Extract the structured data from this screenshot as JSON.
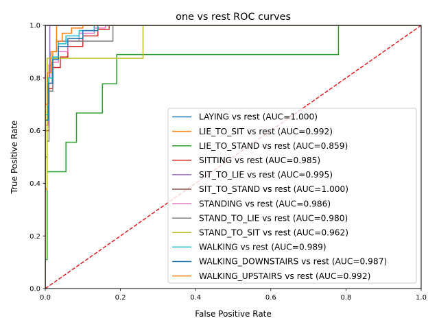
{
  "chart_data": {
    "type": "line",
    "title": "one vs rest ROC curves",
    "xlabel": "False Positive Rate",
    "ylabel": "True Positive Rate",
    "xlim": [
      0.0,
      1.0
    ],
    "ylim": [
      0.0,
      1.0
    ],
    "xticks": [
      0.0,
      0.2,
      0.4,
      0.6,
      0.8,
      1.0
    ],
    "yticks": [
      0.0,
      0.2,
      0.4,
      0.6,
      0.8,
      1.0
    ],
    "xtick_labels": [
      "0.0",
      "0.2",
      "0.4",
      "0.6",
      "0.8",
      "1.0"
    ],
    "ytick_labels": [
      "0.0",
      "0.2",
      "0.4",
      "0.6",
      "0.8",
      "1.0"
    ],
    "grid": false,
    "legend_position": "lower-right",
    "diagonal": {
      "x": [
        0,
        1
      ],
      "y": [
        0,
        1
      ],
      "color": "#e41a1c",
      "style": "dashed"
    },
    "series": [
      {
        "name": "LAYING vs rest (AUC=1.000)",
        "color": "#1f77b4",
        "x": [
          0,
          0,
          1
        ],
        "y": [
          0,
          1,
          1
        ]
      },
      {
        "name": "LIE_TO_SIT vs rest (AUC=0.992)",
        "color": "#ff7f0e",
        "x": [
          0,
          0,
          0.005,
          0.005,
          0.01,
          0.01,
          0.02,
          0.02,
          0.03,
          0.03,
          0.05,
          0.05,
          0.08,
          0.08,
          1
        ],
        "y": [
          0,
          0.38,
          0.38,
          0.7,
          0.7,
          0.85,
          0.85,
          0.9,
          0.9,
          1.0,
          1.0,
          1.0,
          1.0,
          1.0,
          1
        ]
      },
      {
        "name": "LIE_TO_STAND vs rest (AUC=0.859)",
        "color": "#2ca02c",
        "x": [
          0,
          0,
          0.005,
          0.005,
          0.055,
          0.055,
          0.083,
          0.083,
          0.152,
          0.152,
          0.19,
          0.19,
          0.78,
          0.78,
          1
        ],
        "y": [
          0,
          0.11,
          0.11,
          0.444,
          0.444,
          0.556,
          0.556,
          0.667,
          0.667,
          0.778,
          0.778,
          0.889,
          0.889,
          1.0,
          1.0
        ]
      },
      {
        "name": "SITTING vs rest (AUC=0.985)",
        "color": "#d62728",
        "x": [
          0,
          0,
          0.01,
          0.01,
          0.02,
          0.02,
          0.04,
          0.04,
          0.06,
          0.06,
          0.1,
          0.1,
          0.14,
          0.14,
          0.17,
          0.17,
          1
        ],
        "y": [
          0,
          0.6,
          0.6,
          0.76,
          0.76,
          0.84,
          0.84,
          0.88,
          0.88,
          0.92,
          0.92,
          0.96,
          0.96,
          0.985,
          0.985,
          1.0,
          1.0
        ]
      },
      {
        "name": "SIT_TO_LIE vs rest (AUC=0.995)",
        "color": "#9467bd",
        "x": [
          0,
          0,
          0.005,
          0.005,
          0.012,
          0.012,
          1
        ],
        "y": [
          0,
          0.6,
          0.6,
          0.8,
          0.8,
          1.0,
          1.0
        ]
      },
      {
        "name": "SIT_TO_STAND vs rest (AUC=1.000)",
        "color": "#8c564b",
        "x": [
          0,
          0,
          1
        ],
        "y": [
          0,
          1,
          1
        ]
      },
      {
        "name": "STANDING vs rest (AUC=0.986)",
        "color": "#e377c2",
        "x": [
          0,
          0,
          0.008,
          0.008,
          0.018,
          0.018,
          0.035,
          0.035,
          0.06,
          0.06,
          0.09,
          0.09,
          0.13,
          0.13,
          0.16,
          0.16,
          1
        ],
        "y": [
          0,
          0.62,
          0.62,
          0.78,
          0.78,
          0.86,
          0.86,
          0.9,
          0.9,
          0.94,
          0.94,
          0.97,
          0.97,
          0.99,
          0.99,
          1.0,
          1.0
        ]
      },
      {
        "name": "STAND_TO_LIE vs rest (AUC=0.980)",
        "color": "#7f7f7f",
        "x": [
          0,
          0,
          0.005,
          0.005,
          0.01,
          0.01,
          0.02,
          0.02,
          0.035,
          0.035,
          0.18,
          0.18,
          1
        ],
        "y": [
          0,
          0.5,
          0.5,
          0.56,
          0.56,
          0.75,
          0.75,
          0.875,
          0.875,
          0.94,
          0.94,
          1.0,
          1.0
        ]
      },
      {
        "name": "STAND_TO_SIT vs rest (AUC=0.962)",
        "color": "#bcbd22",
        "x": [
          0,
          0,
          0.005,
          0.005,
          0.26,
          0.26,
          1
        ],
        "y": [
          0,
          0.375,
          0.375,
          0.875,
          0.875,
          1.0,
          1.0
        ]
      },
      {
        "name": "WALKING vs rest (AUC=0.989)",
        "color": "#17becf",
        "x": [
          0,
          0,
          0.008,
          0.008,
          0.02,
          0.02,
          0.035,
          0.035,
          0.055,
          0.055,
          0.09,
          0.09,
          0.13,
          0.13,
          1
        ],
        "y": [
          0,
          0.66,
          0.66,
          0.8,
          0.8,
          0.88,
          0.88,
          0.93,
          0.93,
          0.96,
          0.96,
          0.98,
          0.98,
          1.0,
          1.0
        ]
      },
      {
        "name": "WALKING_DOWNSTAIRS vs rest (AUC=0.987)",
        "color": "#1f77b4",
        "x": [
          0,
          0,
          0.008,
          0.008,
          0.02,
          0.02,
          0.035,
          0.035,
          0.06,
          0.06,
          0.1,
          0.1,
          0.14,
          0.14,
          1
        ],
        "y": [
          0,
          0.64,
          0.64,
          0.78,
          0.78,
          0.87,
          0.87,
          0.92,
          0.92,
          0.95,
          0.95,
          0.98,
          0.98,
          1.0,
          1.0
        ]
      },
      {
        "name": "WALKING_UPSTAIRS vs rest (AUC=0.992)",
        "color": "#ff7f0e",
        "x": [
          0,
          0,
          0.006,
          0.006,
          0.015,
          0.015,
          0.03,
          0.03,
          0.045,
          0.045,
          0.07,
          0.07,
          0.1,
          0.1,
          1
        ],
        "y": [
          0,
          0.7,
          0.7,
          0.82,
          0.82,
          0.9,
          0.9,
          0.94,
          0.94,
          0.97,
          0.97,
          0.99,
          0.99,
          1.0,
          1.0
        ]
      }
    ]
  }
}
